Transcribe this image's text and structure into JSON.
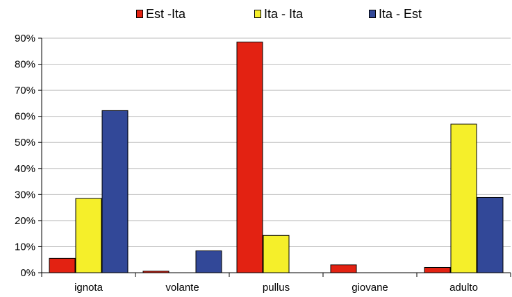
{
  "legend": {
    "items": [
      {
        "label": "Est -Ita",
        "color": "#e32212"
      },
      {
        "label": "Ita - Ita",
        "color": "#f5ef2a"
      },
      {
        "label": "Ita - Est",
        "color": "#324898"
      }
    ]
  },
  "chart_data": {
    "type": "bar",
    "title": "",
    "xlabel": "",
    "ylabel": "",
    "categories": [
      "ignota",
      "volante",
      "pullus",
      "giovane",
      "adulto"
    ],
    "series": [
      {
        "name": "Est -Ita",
        "values": [
          5.5,
          0.6,
          88.5,
          3.0,
          2.0
        ]
      },
      {
        "name": "Ita - Ita",
        "values": [
          28.5,
          0,
          14.3,
          0,
          57.0
        ]
      },
      {
        "name": "Ita - Est",
        "values": [
          62.2,
          8.4,
          0,
          0,
          28.9
        ]
      }
    ],
    "ylim": [
      0,
      90
    ],
    "yticks": [
      0,
      10,
      20,
      30,
      40,
      50,
      60,
      70,
      80,
      90
    ],
    "ytick_labels": [
      "0%",
      "10%",
      "20%",
      "30%",
      "40%",
      "50%",
      "60%",
      "70%",
      "80%",
      "90%"
    ],
    "grid": true,
    "legend_position": "top"
  }
}
